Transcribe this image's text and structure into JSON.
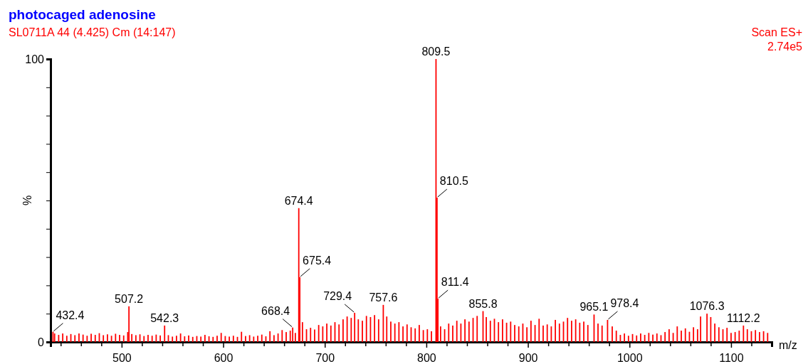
{
  "chart_data": {
    "type": "bar",
    "title": "photocaged adenosine",
    "subtitle": "SL0711A 44 (4.425) Cm (14:147)",
    "xlabel": "m/z",
    "ylabel": "%",
    "x": [
      432.4,
      434,
      438,
      442,
      446,
      450,
      454,
      458,
      462,
      466,
      470,
      474,
      478,
      482,
      486,
      490,
      494,
      498,
      502,
      506,
      507.2,
      510,
      514,
      518,
      522,
      526,
      530,
      534,
      538,
      542.3,
      546,
      550,
      554,
      558,
      562,
      566,
      570,
      574,
      578,
      582,
      586,
      590,
      594,
      598,
      602,
      606,
      610,
      614,
      618,
      622,
      626,
      630,
      634,
      638,
      642,
      646,
      650,
      654,
      658,
      662,
      666,
      668.4,
      671,
      674.4,
      675.4,
      678,
      682,
      686,
      690,
      694,
      698,
      702,
      706,
      710,
      714,
      718,
      722,
      726,
      729.4,
      733,
      737,
      741,
      745,
      749,
      753,
      757.6,
      761,
      765,
      769,
      773,
      777,
      781,
      785,
      789,
      793,
      797,
      801,
      805,
      809.5,
      810.5,
      811.4,
      814,
      818,
      822,
      826,
      830,
      834,
      838,
      842,
      846,
      850,
      855.8,
      859,
      863,
      867,
      871,
      875,
      879,
      883,
      887,
      891,
      895,
      899,
      903,
      907,
      911,
      915,
      919,
      923,
      927,
      931,
      935,
      939,
      943,
      947,
      951,
      955,
      959,
      965.1,
      969,
      973,
      978.4,
      983,
      987,
      991,
      995,
      999,
      1003,
      1007,
      1011,
      1015,
      1019,
      1023,
      1027,
      1031,
      1035,
      1039,
      1043,
      1047,
      1051,
      1055,
      1059,
      1063,
      1067,
      1070,
      1076.3,
      1080,
      1084,
      1088,
      1092,
      1096,
      1100,
      1104,
      1108,
      1112.2,
      1116,
      1120,
      1124,
      1128,
      1132,
      1136
    ],
    "values": [
      3.6,
      3,
      2.5,
      3,
      2.2,
      2.8,
      2.4,
      3,
      2.6,
      2.2,
      2.9,
      2.5,
      3.1,
      2.4,
      2.7,
      2.2,
      2.9,
      2.5,
      2.3,
      3.5,
      12.6,
      2.8,
      2.4,
      2.7,
      2.1,
      2.5,
      2.2,
      2.6,
      2.3,
      5.8,
      2.4,
      1.9,
      2.2,
      3,
      2,
      2.3,
      1.8,
      2.1,
      1.9,
      2.5,
      2,
      1.8,
      2.2,
      3.2,
      2.1,
      1.9,
      2.2,
      1.8,
      3.6,
      2.1,
      2.4,
      1.9,
      2.2,
      2.6,
      2,
      3.8,
      2.4,
      3,
      4.2,
      3.5,
      4,
      5.1,
      3.2,
      47.3,
      22.9,
      7,
      4.5,
      5,
      4.4,
      6,
      5.5,
      6.5,
      5.8,
      7,
      6.2,
      8,
      9,
      8.5,
      10.3,
      8,
      7.5,
      9.2,
      8.8,
      9.5,
      8,
      13.1,
      9,
      7.2,
      6.5,
      7,
      5.5,
      6.2,
      5.2,
      4.8,
      6,
      4.2,
      4.5,
      3.8,
      100,
      51,
      15.3,
      5.5,
      4.5,
      6.5,
      5.8,
      7.5,
      6.5,
      8,
      7.2,
      8.5,
      9.2,
      10.9,
      8.8,
      7.5,
      8.2,
      7,
      8,
      6.8,
      7.2,
      6,
      5.5,
      6.5,
      5.2,
      7.5,
      6,
      8.2,
      5.8,
      6.2,
      5.5,
      7.8,
      6.5,
      7.2,
      8.5,
      7.5,
      8,
      6.8,
      7.2,
      6,
      9.7,
      6.5,
      5.8,
      7.8,
      5.5,
      4,
      2.5,
      3,
      2.2,
      2.8,
      2.3,
      3,
      2.5,
      3.2,
      2.6,
      3,
      2.4,
      3.5,
      4.5,
      3.2,
      5.5,
      4,
      4.8,
      3.6,
      5.2,
      4.5,
      9,
      10,
      8.8,
      6.5,
      5.2,
      4.5,
      5,
      3.2,
      3.5,
      4,
      5.8,
      4.5,
      3.8,
      4.2,
      3.5,
      3.8,
      3.2
    ],
    "color": "#ff0000",
    "xlim": [
      430,
      1140
    ],
    "xticks": [
      {
        "value": 440,
        "label": null
      },
      {
        "value": 460,
        "label": null
      },
      {
        "value": 480,
        "label": null
      },
      500,
      {
        "value": 520,
        "label": null
      },
      {
        "value": 540,
        "label": null
      },
      {
        "value": 560,
        "label": null
      },
      {
        "value": 580,
        "label": null
      },
      600,
      {
        "value": 620,
        "label": null
      },
      {
        "value": 640,
        "label": null
      },
      {
        "value": 660,
        "label": null
      },
      {
        "value": 680,
        "label": null
      },
      700,
      {
        "value": 720,
        "label": null
      },
      {
        "value": 740,
        "label": null
      },
      {
        "value": 760,
        "label": null
      },
      {
        "value": 780,
        "label": null
      },
      800,
      {
        "value": 820,
        "label": null
      },
      {
        "value": 840,
        "label": null
      },
      {
        "value": 860,
        "label": null
      },
      {
        "value": 880,
        "label": null
      },
      900,
      {
        "value": 920,
        "label": null
      },
      {
        "value": 940,
        "label": null
      },
      {
        "value": 960,
        "label": null
      },
      {
        "value": 980,
        "label": null
      },
      1000,
      {
        "value": 1020,
        "label": null
      },
      {
        "value": 1040,
        "label": null
      },
      {
        "value": 1060,
        "label": null
      },
      {
        "value": 1080,
        "label": null
      },
      1100,
      {
        "value": 1120,
        "label": null
      }
    ],
    "ylim": [
      0,
      100
    ],
    "yticks": [
      0,
      {
        "value": 10,
        "label": null
      },
      {
        "value": 20,
        "label": null
      },
      {
        "value": 30,
        "label": null
      },
      {
        "value": 40,
        "label": null
      },
      {
        "value": 50,
        "label": null
      },
      {
        "value": 60,
        "label": null
      },
      {
        "value": 70,
        "label": null
      },
      {
        "value": 80,
        "label": null
      },
      {
        "value": 90,
        "label": null
      },
      100
    ],
    "annotations": [
      {
        "text": "809.5",
        "x": 809.5,
        "y": 100
      },
      {
        "text": "810.5",
        "x": 810.5,
        "y": 51
      },
      {
        "text": "674.4",
        "x": 674.4,
        "y": 47.3
      },
      {
        "text": "675.4",
        "x": 675.4,
        "y": 22.9
      },
      {
        "text": "811.4",
        "x": 811.4,
        "y": 15.3
      },
      {
        "text": "757.6",
        "x": 757.6,
        "y": 13.1
      },
      {
        "text": "507.2",
        "x": 507.2,
        "y": 12.6
      },
      {
        "text": "855.8",
        "x": 855.8,
        "y": 10.9
      },
      {
        "text": "729.4",
        "x": 729.4,
        "y": 10.3
      },
      {
        "text": "1076.3",
        "x": 1076.3,
        "y": 10
      },
      {
        "text": "965.1",
        "x": 965.1,
        "y": 9.7
      },
      {
        "text": "978.4",
        "x": 978.4,
        "y": 7.8
      },
      {
        "text": "542.3",
        "x": 542.3,
        "y": 5.8
      },
      {
        "text": "1112.2",
        "x": 1112.2,
        "y": 5.8
      },
      {
        "text": "668.4",
        "x": 668.4,
        "y": 5.1
      },
      {
        "text": "432.4",
        "x": 432.4,
        "y": 3.6
      },
      "Scan ES+",
      "2.74e5"
    ]
  }
}
